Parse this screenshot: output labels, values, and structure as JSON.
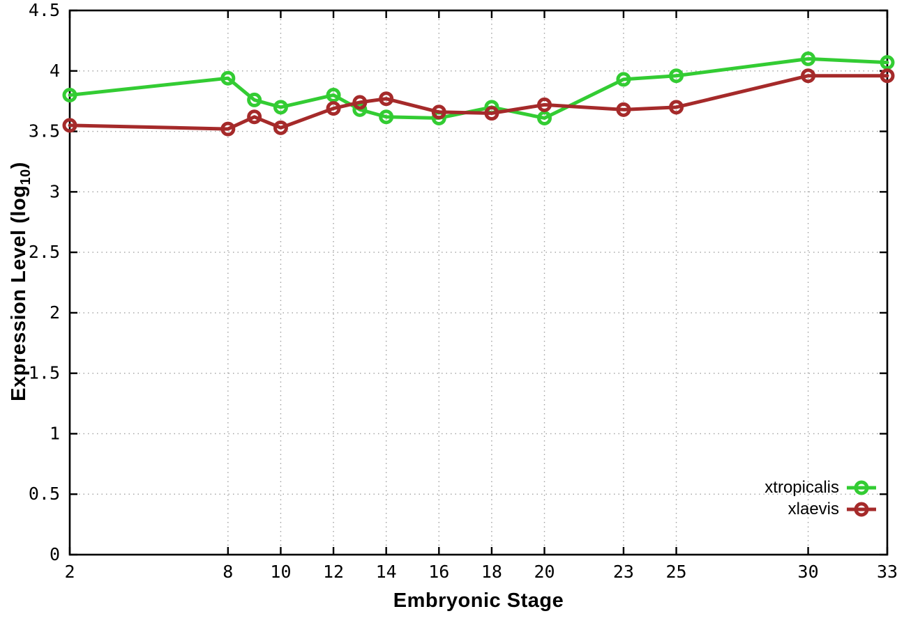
{
  "chart_data": {
    "type": "line",
    "title": "",
    "xlabel": "Embryonic Stage",
    "ylabel": "Expression Level (log10)",
    "ylabel_parts": {
      "main": "Expression Level (log",
      "sub": "10",
      "end": ")"
    },
    "xlim": [
      2,
      33
    ],
    "ylim": [
      0,
      4.5
    ],
    "grid": true,
    "legend_position": "bottom-right-inside",
    "marker": "open-circle",
    "xticks": {
      "values": [
        2,
        8,
        10,
        12,
        14,
        16,
        18,
        20,
        23,
        25,
        30,
        33
      ],
      "labels": [
        "2",
        "8",
        "10",
        "12",
        "14",
        "16",
        "18",
        "20",
        "23",
        "25",
        "30",
        "33"
      ]
    },
    "yticks": {
      "values": [
        0,
        0.5,
        1,
        1.5,
        2,
        2.5,
        3,
        3.5,
        4,
        4.5
      ],
      "labels": [
        "0",
        "0.5",
        "1",
        "1.5",
        "2",
        "2.5",
        "3",
        "3.5",
        "4",
        "4.5"
      ]
    },
    "x": [
      2,
      8,
      9,
      10,
      12,
      13,
      14,
      16,
      18,
      20,
      23,
      25,
      30,
      33
    ],
    "series": [
      {
        "name": "xtropicalis",
        "color": "#33cc33",
        "values": [
          3.8,
          3.94,
          3.76,
          3.7,
          3.8,
          3.68,
          3.62,
          3.61,
          3.7,
          3.61,
          3.93,
          3.96,
          4.1,
          4.07
        ]
      },
      {
        "name": "xlaevis",
        "color": "#a52a2a",
        "values": [
          3.55,
          3.52,
          3.62,
          3.53,
          3.69,
          3.74,
          3.77,
          3.66,
          3.65,
          3.72,
          3.68,
          3.7,
          3.96,
          3.96
        ]
      }
    ]
  },
  "style_colors": {
    "background": "#ffffff",
    "grid": "#a0a0a0",
    "border": "#000000",
    "tick_label": "#000000",
    "axis_title": "#000000"
  }
}
